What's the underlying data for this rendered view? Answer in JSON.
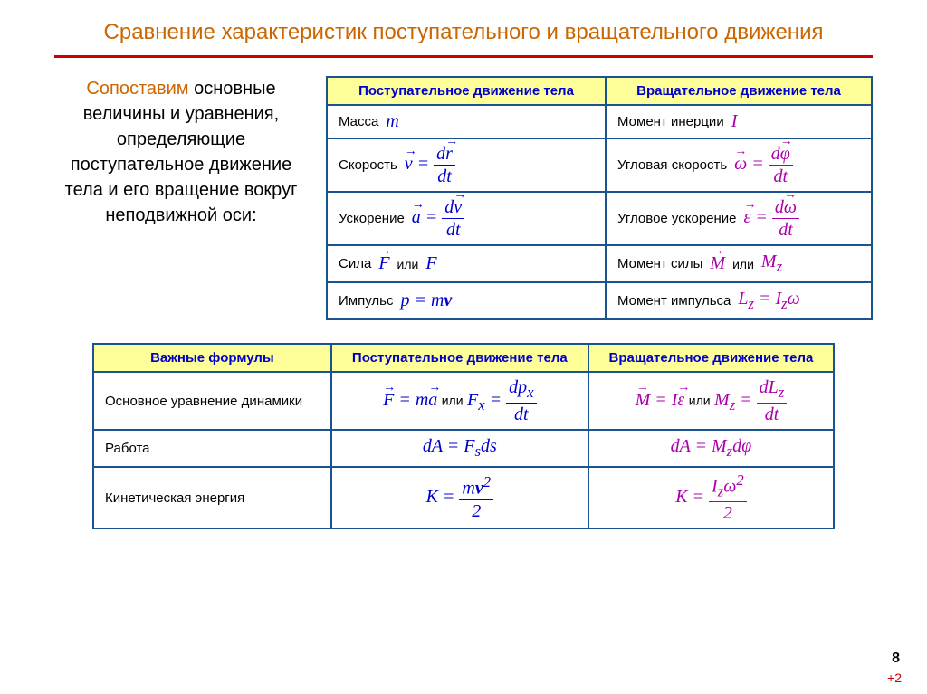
{
  "title": "Сравнение характеристик поступательного и вращательного движения",
  "intro": {
    "highlight": "Сопоставим",
    "rest": "основные величины и уравнения, определяющие поступательное движение тела и его вращение вокруг неподвижной оси:"
  },
  "table1": {
    "headers": [
      "Поступательное движение тела",
      "Вращательное движение тела"
    ],
    "rows": [
      {
        "l1": "Масса",
        "f1": "m",
        "l2": "Момент инерции",
        "f2": "I"
      },
      {
        "l1": "Скорость",
        "f1": "v = dr/dt",
        "l2": "Угловая скорость",
        "f2": "ω = dφ/dt"
      },
      {
        "l1": "Ускорение",
        "f1": "a = dv/dt",
        "l2": "Угловое ускорение",
        "f2": "ε = dω/dt"
      },
      {
        "l1": "Сила",
        "f1": "F",
        "f1b": "F",
        "l2": "Момент силы",
        "f2": "M",
        "f2b": "Mz"
      },
      {
        "l1": "Импульс",
        "f1": "p = mv",
        "l2": "Момент импульса",
        "f2": "Lz = Izω"
      }
    ]
  },
  "table2": {
    "headers": [
      "Важные формулы",
      "Поступательное движение тела",
      "Вращательное движение тела"
    ],
    "rows": [
      {
        "label": "Основное уравнение динамики"
      },
      {
        "label": "Работа"
      },
      {
        "label": "Кинетическая энергия"
      }
    ]
  },
  "page_number": "8",
  "plus_two": "+2",
  "or": "или",
  "colors": {
    "title": "#cc6600",
    "rule": "#cc0000",
    "border": "#1a5490",
    "header_bg": "#ffff99",
    "header_text": "#0000cc",
    "formula_blue": "#0000cc",
    "formula_purple": "#aa00aa"
  }
}
